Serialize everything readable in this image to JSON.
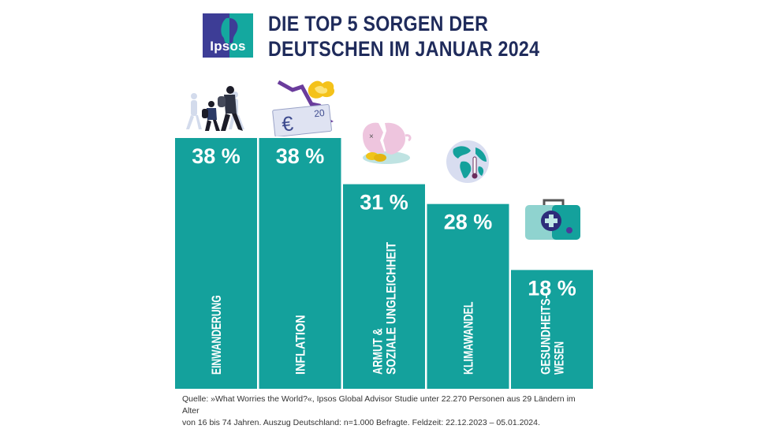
{
  "header": {
    "logo_text": "Ipsos",
    "title_line1": "DIE TOP 5 SORGEN DER",
    "title_line2": "DEUTSCHEN IM JANUAR 2024"
  },
  "colors": {
    "bar": "#14a19c",
    "title": "#1f2b5b",
    "logo_left": "#3d3d96",
    "logo_right": "#14a89f"
  },
  "icons": [
    "migration-icon",
    "inflation-icon",
    "broken-piggy-bank-icon",
    "globe-thermometer-icon",
    "first-aid-kit-icon"
  ],
  "chart_data": {
    "type": "bar",
    "title": "DIE TOP 5 SORGEN DER DEUTSCHEN IM JANUAR 2024",
    "categories": [
      "EINWANDERUNG",
      "INFLATION",
      "ARMUT & SOZIALE UNGLEICHHEIT",
      "KLIMAWANDEL",
      "GESUNDHEITSWESEN"
    ],
    "category_lines": [
      [
        "EINWANDERUNG"
      ],
      [
        "INFLATION"
      ],
      [
        "ARMUT &",
        "SOZIALE UNGLEICHHEIT"
      ],
      [
        "KLIMAWANDEL"
      ],
      [
        "GESUNDHEITS-",
        "WESEN"
      ]
    ],
    "values": [
      38,
      38,
      31,
      28,
      18
    ],
    "value_labels": [
      "38 %",
      "38 %",
      "31 %",
      "28 %",
      "18 %"
    ],
    "unit": "%",
    "xlabel": "",
    "ylabel": "",
    "ylim": [
      0,
      38
    ],
    "grid": false,
    "legend": "none"
  },
  "footer": {
    "source_line1": "Quelle: »What Worries the World?«, Ipsos Global Advisor Studie unter 22.270 Personen aus 29 Ländern im Alter",
    "source_line2": "von 16 bis 74 Jahren. Auszug Deutschland: n=1.000 Befragte. Feldzeit: 22.12.2023 – 05.01.2024."
  }
}
